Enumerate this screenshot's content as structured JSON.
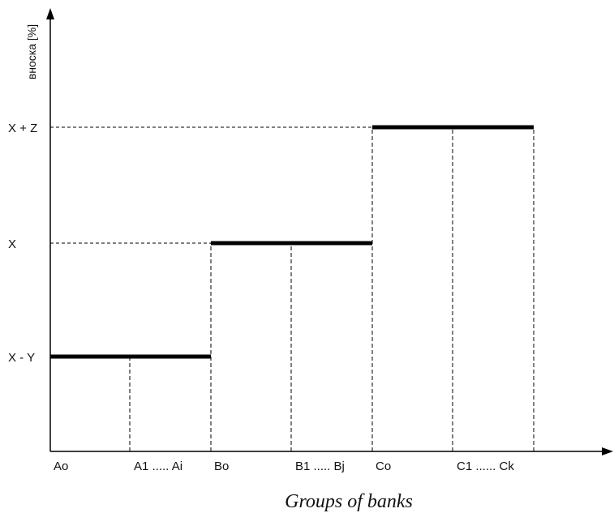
{
  "chart_data": {
    "type": "step",
    "ylabel": "вноска [%]",
    "xlabel": "Groups of banks",
    "y_ticks": [
      "X - Y",
      "X",
      "X + Z"
    ],
    "groups": [
      {
        "level": "X - Y",
        "start_label": "Ao",
        "end_label": "A1 ..... Ai"
      },
      {
        "level": "X",
        "start_label": "Bo",
        "end_label": "B1 ..... Bj"
      },
      {
        "level": "X + Z",
        "start_label": "Co",
        "end_label": "C1 ...... Ck"
      }
    ],
    "grid": false,
    "colors": {
      "line": "#000000",
      "guide": "#000000"
    }
  }
}
